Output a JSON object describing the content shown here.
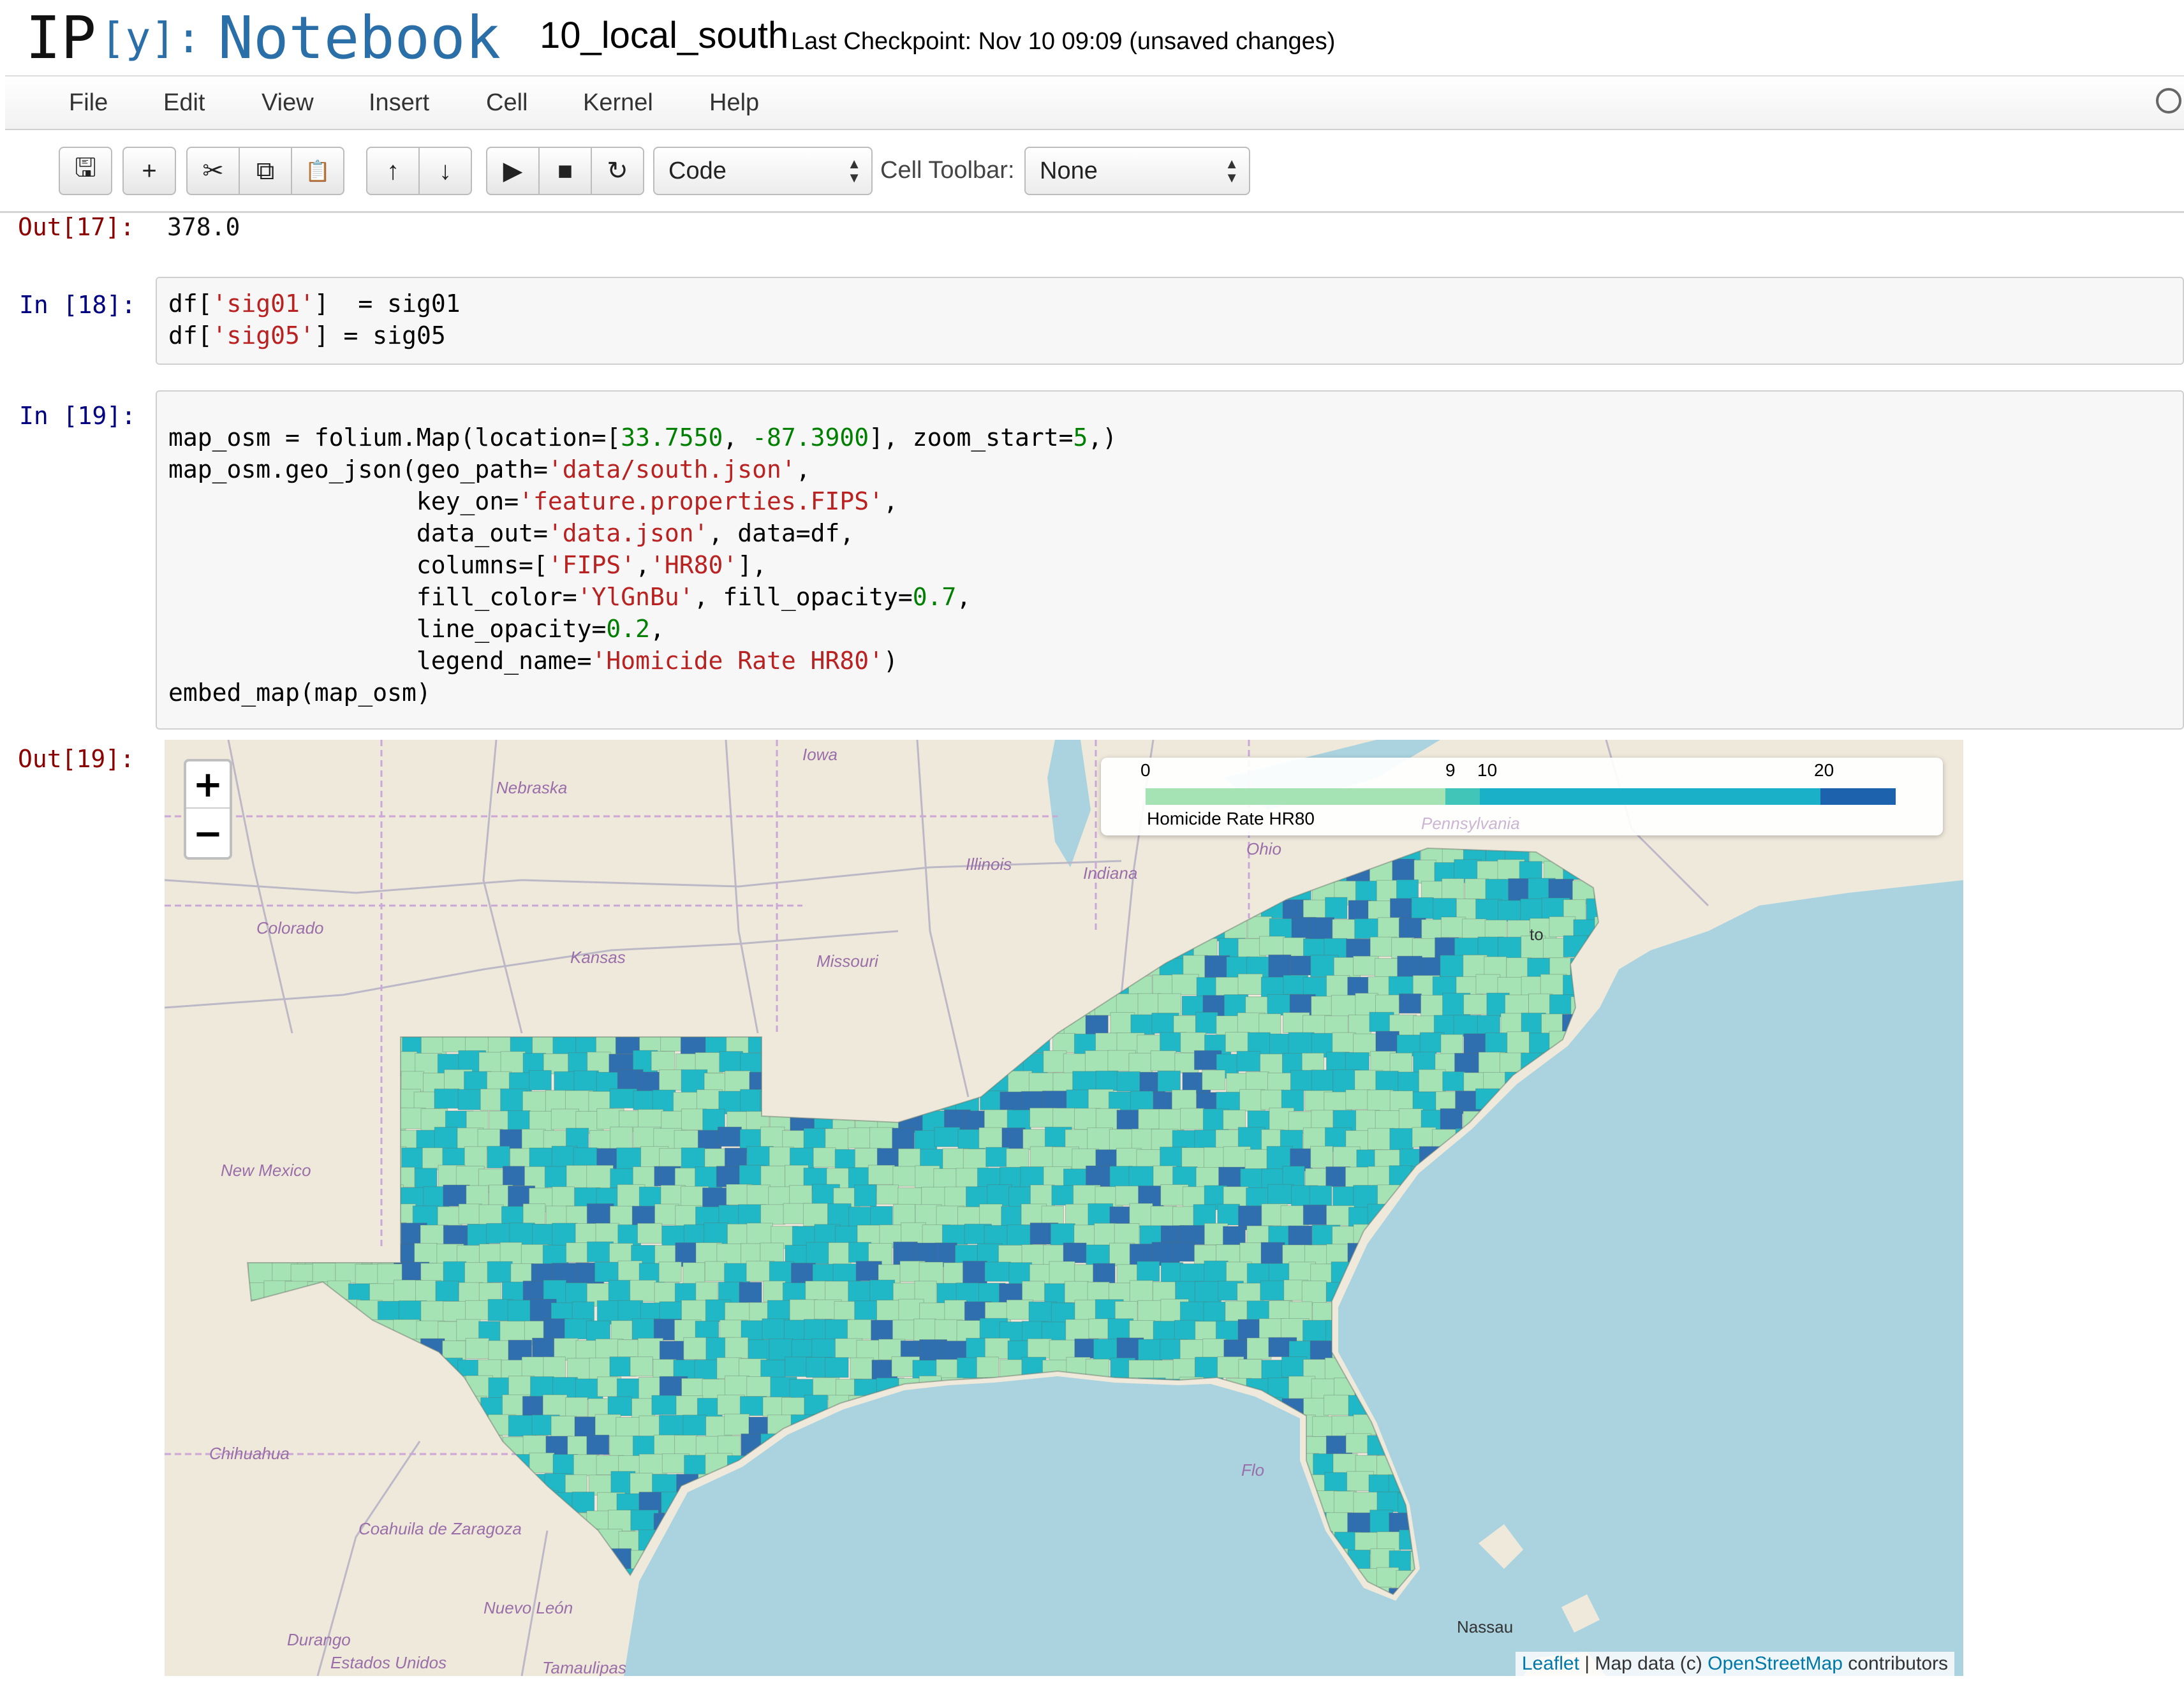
{
  "header": {
    "logo_ip": "IP",
    "logo_y": "[y]:",
    "logo_notebook": "Notebook",
    "notebook_name": "10_local_south",
    "checkpoint": "Last Checkpoint: Nov 10 09:09 (unsaved changes)"
  },
  "menu": [
    "File",
    "Edit",
    "View",
    "Insert",
    "Cell",
    "Kernel",
    "Help"
  ],
  "toolbar": {
    "save": "🖫",
    "insert": "+",
    "cut": "✂",
    "copy": "⧉",
    "paste": "📋",
    "move_up": "↑",
    "move_down": "↓",
    "run": "▶",
    "stop": "■",
    "restart": "↻",
    "cell_type": "Code",
    "cell_toolbar_label": "Cell Toolbar:",
    "cell_toolbar_value": "None"
  },
  "cells": {
    "out17_prompt": "Out[17]:",
    "out17_value": "378.0",
    "in18_prompt": "In [18]:",
    "in19_prompt": "In [19]:",
    "out19_prompt": "Out[19]:"
  },
  "code18": [
    [
      {
        "t": "df["
      },
      {
        "t": "'sig01'",
        "c": "s"
      },
      {
        "t": "]  = sig01"
      }
    ],
    [
      {
        "t": "df["
      },
      {
        "t": "'sig05'",
        "c": "s"
      },
      {
        "t": "] = sig05"
      }
    ]
  ],
  "code19": [
    [
      {
        "t": "map_osm = folium.Map(location=["
      },
      {
        "t": "33.7550",
        "c": "n"
      },
      {
        "t": ", "
      },
      {
        "t": "-87.3900",
        "c": "n"
      },
      {
        "t": "], zoom_start="
      },
      {
        "t": "5",
        "c": "n"
      },
      {
        "t": ",)"
      }
    ],
    [
      {
        "t": "map_osm.geo_json(geo_path="
      },
      {
        "t": "'data/south.json'",
        "c": "s"
      },
      {
        "t": ","
      }
    ],
    [
      {
        "t": "                 key_on="
      },
      {
        "t": "'feature.properties.FIPS'",
        "c": "s"
      },
      {
        "t": ","
      }
    ],
    [
      {
        "t": "                 data_out="
      },
      {
        "t": "'data.json'",
        "c": "s"
      },
      {
        "t": ", data=df,"
      }
    ],
    [
      {
        "t": "                 columns=["
      },
      {
        "t": "'FIPS'",
        "c": "s"
      },
      {
        "t": ","
      },
      {
        "t": "'HR80'",
        "c": "s"
      },
      {
        "t": "],"
      }
    ],
    [
      {
        "t": "                 fill_color="
      },
      {
        "t": "'YlGnBu'",
        "c": "s"
      },
      {
        "t": ", fill_opacity="
      },
      {
        "t": "0.7",
        "c": "n"
      },
      {
        "t": ","
      }
    ],
    [
      {
        "t": "                 line_opacity="
      },
      {
        "t": "0.2",
        "c": "n"
      },
      {
        "t": ","
      }
    ],
    [
      {
        "t": "                 legend_name="
      },
      {
        "t": "'Homicide Rate HR80'",
        "c": "s"
      },
      {
        "t": ")"
      }
    ],
    [
      {
        "t": "embed_map(map_osm)"
      }
    ]
  ],
  "map": {
    "zoom_in": "+",
    "zoom_out": "−",
    "legend": {
      "ticks": [
        "0",
        "9",
        "10",
        "20"
      ],
      "name": "Homicide Rate HR80",
      "colors": [
        "#a6e3b4",
        "#41c5b8",
        "#1ab0c8",
        "#1c62ad"
      ]
    },
    "places": [
      "Iowa",
      "Nebraska",
      "Illinois",
      "Indiana",
      "Ohio",
      "Pennsylvania",
      "Colorado",
      "Kansas",
      "Missouri",
      "New Mexico",
      "Chihuahua",
      "Coahuila de Zaragoza",
      "Nuevo León",
      "Durango",
      "Estados Unidos",
      "Tamaulipas",
      "Nassau",
      "Flo",
      "to"
    ],
    "attribution": {
      "leaflet": "Leaflet",
      "sep": " | Map data (c) ",
      "osm": "OpenStreetMap",
      "tail": " contributors"
    },
    "colors": {
      "land": "#efe9dc",
      "water": "#aad3df",
      "low": "#a6e3b4",
      "mid": "#20b7c6",
      "high": "#2f6fb0"
    }
  }
}
